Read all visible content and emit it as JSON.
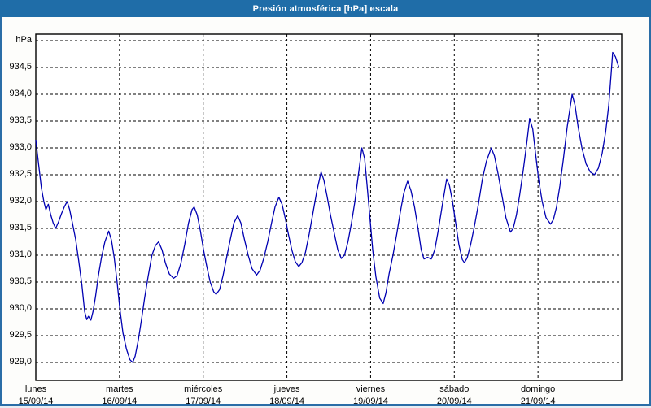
{
  "window": {
    "title": "Presión atmosférica [hPa] escala"
  },
  "colors": {
    "titlebar_bg": "#1f6da8",
    "window_border": "#2a6da7",
    "title_text": "#ffffff",
    "plot_bg": "#ffffff",
    "plot_border": "#000000",
    "gridline": "#000000",
    "series_line": "#0000b2",
    "label_text": "#000000"
  },
  "chart_data": {
    "type": "line",
    "title": "Presión atmosférica [hPa] escala",
    "ylabel": "hPa",
    "y_unit_label": "hPa",
    "grid": "dashed",
    "legend_position": "none",
    "ylim": [
      928.7,
      935.1
    ],
    "y_gridline_values": [
      935.0,
      934.5,
      934.0,
      933.5,
      933.0,
      932.5,
      932.0,
      931.5,
      931.0,
      930.5,
      930.0,
      929.5,
      929.0
    ],
    "y_tick_labels": [
      {
        "value": 934.5,
        "label": "934,5"
      },
      {
        "value": 934.0,
        "label": "934,0"
      },
      {
        "value": 933.5,
        "label": "933,5"
      },
      {
        "value": 933.0,
        "label": "933,0"
      },
      {
        "value": 932.5,
        "label": "932,5"
      },
      {
        "value": 932.0,
        "label": "932,0"
      },
      {
        "value": 931.5,
        "label": "931,5"
      },
      {
        "value": 931.0,
        "label": "931,0"
      },
      {
        "value": 930.5,
        "label": "930,5"
      },
      {
        "value": 930.0,
        "label": "930,0"
      },
      {
        "value": 929.5,
        "label": "929,5"
      },
      {
        "value": 929.0,
        "label": "929,0"
      }
    ],
    "x_range_hours": [
      0,
      168
    ],
    "x_days": [
      {
        "name": "lunes",
        "date": "15/09/14"
      },
      {
        "name": "martes",
        "date": "16/09/14"
      },
      {
        "name": "miércoles",
        "date": "17/09/14"
      },
      {
        "name": "jueves",
        "date": "18/09/14"
      },
      {
        "name": "viernes",
        "date": "19/09/14"
      },
      {
        "name": "sábado",
        "date": "20/09/14"
      },
      {
        "name": "domingo",
        "date": "21/09/14"
      }
    ],
    "series": [
      {
        "name": "Presión atmosférica",
        "unit": "hPa",
        "points_hour_value": [
          [
            0.0,
            933.15
          ],
          [
            0.8,
            932.7
          ],
          [
            1.6,
            932.25
          ],
          [
            2.3,
            932.0
          ],
          [
            2.9,
            931.85
          ],
          [
            3.6,
            931.95
          ],
          [
            4.3,
            931.75
          ],
          [
            5.0,
            931.6
          ],
          [
            5.7,
            931.5
          ],
          [
            6.5,
            931.62
          ],
          [
            7.4,
            931.78
          ],
          [
            8.3,
            931.92
          ],
          [
            9.0,
            932.0
          ],
          [
            9.7,
            931.85
          ],
          [
            10.5,
            931.6
          ],
          [
            11.4,
            931.3
          ],
          [
            12.3,
            930.9
          ],
          [
            13.2,
            930.45
          ],
          [
            14.0,
            929.95
          ],
          [
            14.6,
            929.8
          ],
          [
            15.1,
            929.86
          ],
          [
            15.8,
            929.79
          ],
          [
            16.4,
            929.95
          ],
          [
            17.1,
            930.22
          ],
          [
            17.9,
            930.6
          ],
          [
            18.8,
            930.95
          ],
          [
            19.8,
            931.25
          ],
          [
            20.9,
            931.45
          ],
          [
            21.7,
            931.28
          ],
          [
            22.5,
            930.95
          ],
          [
            23.3,
            930.5
          ],
          [
            24.1,
            930.0
          ],
          [
            25.0,
            929.55
          ],
          [
            26.0,
            929.25
          ],
          [
            27.0,
            929.05
          ],
          [
            27.8,
            929.0
          ],
          [
            28.5,
            929.12
          ],
          [
            29.4,
            929.42
          ],
          [
            30.3,
            929.8
          ],
          [
            31.2,
            930.2
          ],
          [
            32.2,
            930.6
          ],
          [
            33.3,
            931.0
          ],
          [
            34.3,
            931.18
          ],
          [
            35.2,
            931.25
          ],
          [
            36.2,
            931.1
          ],
          [
            37.2,
            930.85
          ],
          [
            38.3,
            930.65
          ],
          [
            39.5,
            930.57
          ],
          [
            40.5,
            930.62
          ],
          [
            41.6,
            930.85
          ],
          [
            42.7,
            931.2
          ],
          [
            43.8,
            931.6
          ],
          [
            44.8,
            931.85
          ],
          [
            45.4,
            931.9
          ],
          [
            46.3,
            931.75
          ],
          [
            47.2,
            931.45
          ],
          [
            48.1,
            931.1
          ],
          [
            49.0,
            930.8
          ],
          [
            50.0,
            930.5
          ],
          [
            51.0,
            930.32
          ],
          [
            51.7,
            930.27
          ],
          [
            52.7,
            930.36
          ],
          [
            53.7,
            930.62
          ],
          [
            54.7,
            930.95
          ],
          [
            55.8,
            931.3
          ],
          [
            56.8,
            931.6
          ],
          [
            57.9,
            931.74
          ],
          [
            58.8,
            931.6
          ],
          [
            59.8,
            931.3
          ],
          [
            60.9,
            931.0
          ],
          [
            62.0,
            930.75
          ],
          [
            63.3,
            930.63
          ],
          [
            64.3,
            930.72
          ],
          [
            65.4,
            930.95
          ],
          [
            66.5,
            931.25
          ],
          [
            67.6,
            931.6
          ],
          [
            68.6,
            931.9
          ],
          [
            69.7,
            932.08
          ],
          [
            70.6,
            931.95
          ],
          [
            71.5,
            931.7
          ],
          [
            72.4,
            931.4
          ],
          [
            73.4,
            931.1
          ],
          [
            74.4,
            930.88
          ],
          [
            75.4,
            930.79
          ],
          [
            76.3,
            930.86
          ],
          [
            77.3,
            931.05
          ],
          [
            78.4,
            931.4
          ],
          [
            79.5,
            931.8
          ],
          [
            80.6,
            932.2
          ],
          [
            81.8,
            932.55
          ],
          [
            82.6,
            932.4
          ],
          [
            83.5,
            932.1
          ],
          [
            84.5,
            931.75
          ],
          [
            85.6,
            931.4
          ],
          [
            86.6,
            931.1
          ],
          [
            87.6,
            930.94
          ],
          [
            88.5,
            931.0
          ],
          [
            89.5,
            931.25
          ],
          [
            90.5,
            931.6
          ],
          [
            91.5,
            932.0
          ],
          [
            92.5,
            932.5
          ],
          [
            93.5,
            933.0
          ],
          [
            94.3,
            932.8
          ],
          [
            95.0,
            932.3
          ],
          [
            95.8,
            931.7
          ],
          [
            96.6,
            931.1
          ],
          [
            97.5,
            930.6
          ],
          [
            98.6,
            930.2
          ],
          [
            99.6,
            930.1
          ],
          [
            100.4,
            930.3
          ],
          [
            101.3,
            930.65
          ],
          [
            102.4,
            931.0
          ],
          [
            103.5,
            931.4
          ],
          [
            104.5,
            931.8
          ],
          [
            105.5,
            932.15
          ],
          [
            106.6,
            932.38
          ],
          [
            107.6,
            932.2
          ],
          [
            108.6,
            931.9
          ],
          [
            109.6,
            931.5
          ],
          [
            110.5,
            931.1
          ],
          [
            111.3,
            930.93
          ],
          [
            112.3,
            930.96
          ],
          [
            113.4,
            930.93
          ],
          [
            114.4,
            931.1
          ],
          [
            115.5,
            931.5
          ],
          [
            116.6,
            931.95
          ],
          [
            117.8,
            932.42
          ],
          [
            118.6,
            932.3
          ],
          [
            119.5,
            932.0
          ],
          [
            120.4,
            931.6
          ],
          [
            121.3,
            931.2
          ],
          [
            122.3,
            930.92
          ],
          [
            122.9,
            930.86
          ],
          [
            123.7,
            930.95
          ],
          [
            124.7,
            931.2
          ],
          [
            125.8,
            931.55
          ],
          [
            126.9,
            931.95
          ],
          [
            128.0,
            932.4
          ],
          [
            129.2,
            932.75
          ],
          [
            130.6,
            933.0
          ],
          [
            131.5,
            932.85
          ],
          [
            132.6,
            932.5
          ],
          [
            133.7,
            932.1
          ],
          [
            134.8,
            931.7
          ],
          [
            136.1,
            931.43
          ],
          [
            136.9,
            931.5
          ],
          [
            137.8,
            931.75
          ],
          [
            138.7,
            932.1
          ],
          [
            139.7,
            932.55
          ],
          [
            140.7,
            933.05
          ],
          [
            141.6,
            933.55
          ],
          [
            142.5,
            933.35
          ],
          [
            143.3,
            932.9
          ],
          [
            144.2,
            932.4
          ],
          [
            145.2,
            932.0
          ],
          [
            146.3,
            931.7
          ],
          [
            147.6,
            931.58
          ],
          [
            148.4,
            931.66
          ],
          [
            149.3,
            931.9
          ],
          [
            150.3,
            932.3
          ],
          [
            151.3,
            932.8
          ],
          [
            152.4,
            933.4
          ],
          [
            153.8,
            934.0
          ],
          [
            154.6,
            933.8
          ],
          [
            155.5,
            933.4
          ],
          [
            156.6,
            933.0
          ],
          [
            157.8,
            932.7
          ],
          [
            159.0,
            932.55
          ],
          [
            160.2,
            932.5
          ],
          [
            161.3,
            932.62
          ],
          [
            162.4,
            932.9
          ],
          [
            163.4,
            933.3
          ],
          [
            164.3,
            933.8
          ],
          [
            165.0,
            934.4
          ],
          [
            165.4,
            934.78
          ],
          [
            166.2,
            934.7
          ],
          [
            167.2,
            934.5
          ]
        ]
      }
    ]
  }
}
